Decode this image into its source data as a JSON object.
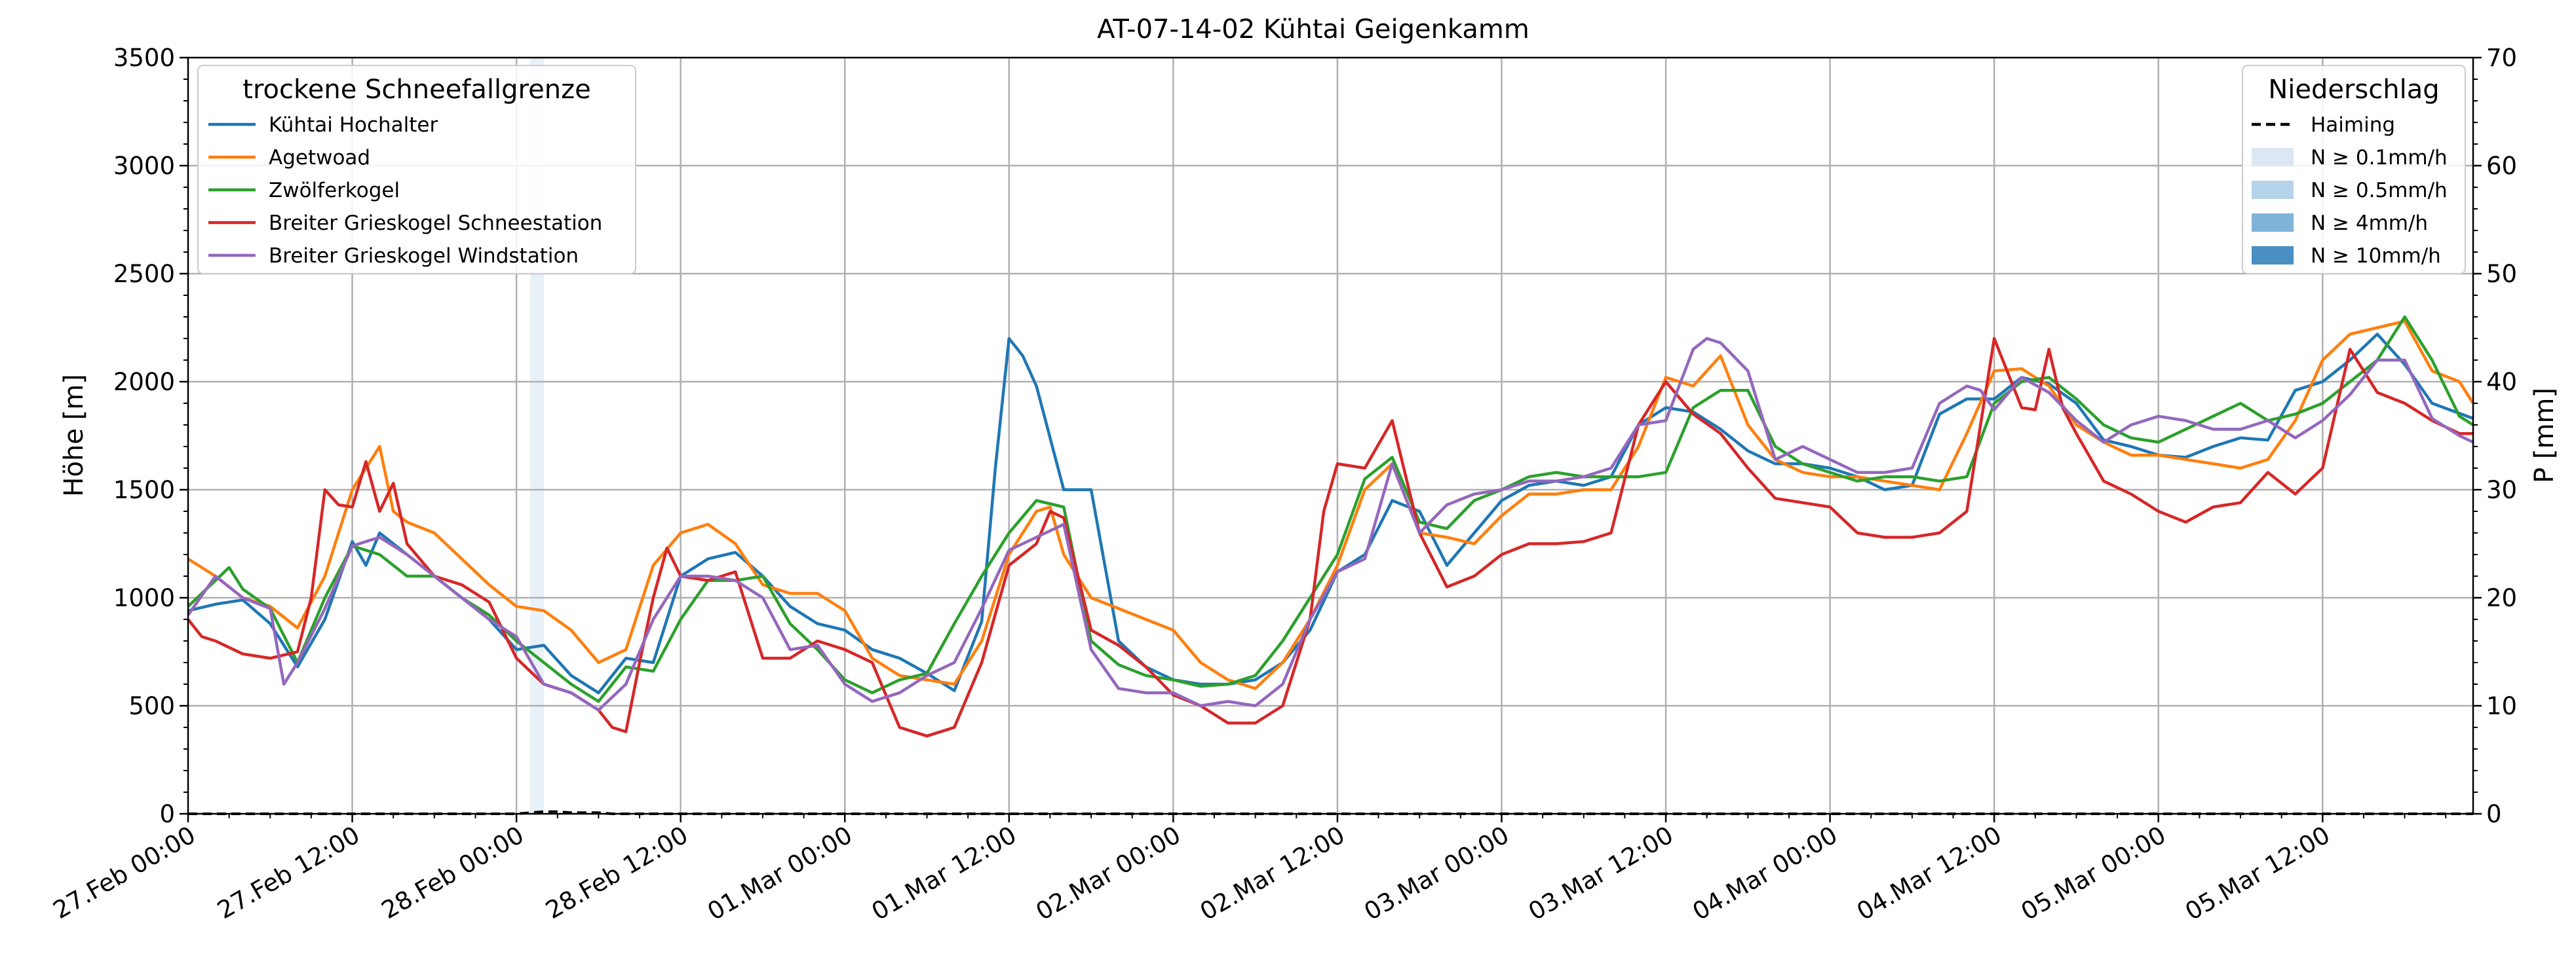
{
  "chart_data": {
    "type": "line",
    "title": "AT-07-14-02 Kühtai Geigenkamm",
    "ylabel_left": "Höhe [m]",
    "ylabel_right": "P [mm]",
    "ylim_left": [
      0,
      3500
    ],
    "ylim_right": [
      0,
      70
    ],
    "yticks_left": [
      0,
      500,
      1000,
      1500,
      2000,
      2500,
      3000,
      3500
    ],
    "yticks_right": [
      0,
      10,
      20,
      30,
      40,
      50,
      60,
      70
    ],
    "x_range_hours": [
      0,
      167
    ],
    "x_unit": "hours since 27 Feb 00:00",
    "xticks": [
      {
        "h": 0,
        "label": "27.Feb 00:00"
      },
      {
        "h": 12,
        "label": "27.Feb 12:00"
      },
      {
        "h": 24,
        "label": "28.Feb 00:00"
      },
      {
        "h": 36,
        "label": "28.Feb 12:00"
      },
      {
        "h": 48,
        "label": "01.Mar 00:00"
      },
      {
        "h": 60,
        "label": "01.Mar 12:00"
      },
      {
        "h": 72,
        "label": "02.Mar 00:00"
      },
      {
        "h": 84,
        "label": "02.Mar 12:00"
      },
      {
        "h": 96,
        "label": "03.Mar 00:00"
      },
      {
        "h": 108,
        "label": "03.Mar 12:00"
      },
      {
        "h": 120,
        "label": "04.Mar 00:00"
      },
      {
        "h": 132,
        "label": "04.Mar 12:00"
      },
      {
        "h": 144,
        "label": "05.Mar 00:00"
      },
      {
        "h": 156,
        "label": "05.Mar 12:00"
      }
    ],
    "grid": true,
    "legend_left": {
      "title": "trockene Schneefallgrenze",
      "placement": "upper-left"
    },
    "legend_right": {
      "title": "Niederschlag",
      "placement": "upper-right",
      "entries": [
        {
          "label": "Haiming",
          "kind": "dashed-line",
          "color": "#000000"
        },
        {
          "label": "N ≥ 0.1mm/h",
          "kind": "patch",
          "color": "#dbe8f4"
        },
        {
          "label": "N ≥ 0.5mm/h",
          "kind": "patch",
          "color": "#b5d3ea"
        },
        {
          "label": "N ≥ 4mm/h",
          "kind": "patch",
          "color": "#7fb3d8"
        },
        {
          "label": "N ≥ 10mm/h",
          "kind": "patch",
          "color": "#4a8fc4"
        }
      ]
    },
    "precip_bands": [
      {
        "h_start": 25,
        "h_end": 26,
        "level": "N ≥ 0.1mm/h"
      }
    ],
    "haiming_precip": {
      "x": [
        0,
        24,
        25,
        26,
        27,
        28,
        29,
        30,
        31,
        167
      ],
      "y": [
        0,
        0,
        0.1,
        0.2,
        0.2,
        0.1,
        0.1,
        0.1,
        0,
        0
      ]
    },
    "series": [
      {
        "name": "Kühtai Hochalter",
        "color": "#1f77b4",
        "x": [
          0,
          2,
          4,
          6,
          8,
          10,
          12,
          13,
          14,
          16,
          18,
          20,
          22,
          24,
          26,
          28,
          30,
          32,
          34,
          36,
          38,
          40,
          42,
          44,
          46,
          48,
          50,
          52,
          54,
          56,
          58,
          59,
          60,
          61,
          62,
          64,
          66,
          68,
          70,
          72,
          74,
          76,
          78,
          80,
          82,
          84,
          86,
          88,
          90,
          92,
          94,
          96,
          98,
          100,
          102,
          104,
          106,
          108,
          110,
          112,
          114,
          116,
          118,
          120,
          122,
          124,
          126,
          128,
          130,
          132,
          134,
          136,
          138,
          140,
          142,
          144,
          146,
          148,
          150,
          152,
          154,
          156,
          158,
          160,
          162,
          164,
          167
        ],
        "y": [
          940,
          970,
          990,
          880,
          680,
          900,
          1260,
          1150,
          1300,
          1200,
          1100,
          1000,
          900,
          760,
          780,
          640,
          560,
          720,
          700,
          1100,
          1180,
          1210,
          1100,
          960,
          880,
          850,
          760,
          720,
          650,
          570,
          890,
          1600,
          2200,
          2120,
          1980,
          1500,
          1500,
          800,
          680,
          620,
          600,
          600,
          620,
          700,
          850,
          1120,
          1200,
          1450,
          1400,
          1150,
          1300,
          1450,
          1520,
          1540,
          1520,
          1560,
          1800,
          1880,
          1860,
          1780,
          1680,
          1620,
          1620,
          1600,
          1560,
          1500,
          1520,
          1850,
          1920,
          1920,
          2020,
          1990,
          1900,
          1730,
          1700,
          1660,
          1650,
          1700,
          1740,
          1730,
          1960,
          2000,
          2100,
          2220,
          2080,
          1900,
          1830
        ]
      },
      {
        "name": "Agetwoad",
        "color": "#ff7f0e",
        "x": [
          0,
          2,
          4,
          6,
          8,
          10,
          12,
          13,
          14,
          15,
          16,
          18,
          20,
          22,
          24,
          26,
          28,
          30,
          32,
          34,
          36,
          38,
          40,
          42,
          44,
          46,
          48,
          50,
          52,
          54,
          56,
          58,
          60,
          62,
          63,
          64,
          66,
          68,
          70,
          72,
          74,
          76,
          78,
          80,
          82,
          84,
          86,
          88,
          90,
          92,
          94,
          96,
          98,
          100,
          102,
          104,
          106,
          108,
          110,
          112,
          114,
          116,
          118,
          120,
          122,
          124,
          126,
          128,
          130,
          132,
          134,
          136,
          138,
          140,
          142,
          144,
          146,
          148,
          150,
          152,
          154,
          156,
          158,
          160,
          162,
          164,
          166,
          167
        ],
        "y": [
          1180,
          1100,
          1000,
          960,
          860,
          1100,
          1500,
          1600,
          1700,
          1400,
          1350,
          1300,
          1180,
          1060,
          960,
          940,
          850,
          700,
          760,
          1150,
          1300,
          1340,
          1250,
          1060,
          1020,
          1020,
          940,
          720,
          640,
          620,
          600,
          800,
          1200,
          1400,
          1420,
          1200,
          1000,
          950,
          900,
          850,
          700,
          620,
          580,
          700,
          900,
          1150,
          1500,
          1620,
          1300,
          1280,
          1250,
          1380,
          1480,
          1480,
          1500,
          1500,
          1700,
          2020,
          1980,
          2120,
          1800,
          1640,
          1580,
          1560,
          1560,
          1540,
          1520,
          1500,
          1760,
          2050,
          2060,
          1980,
          1800,
          1720,
          1660,
          1660,
          1640,
          1620,
          1600,
          1640,
          1820,
          2100,
          2220,
          2250,
          2280,
          2050,
          2000,
          1900
        ]
      },
      {
        "name": "Zwölferkogel",
        "color": "#2ca02c",
        "x": [
          0,
          2,
          3,
          4,
          6,
          8,
          10,
          12,
          14,
          16,
          18,
          20,
          22,
          24,
          26,
          28,
          30,
          32,
          34,
          36,
          38,
          40,
          42,
          44,
          46,
          48,
          50,
          52,
          54,
          56,
          58,
          60,
          62,
          64,
          66,
          68,
          70,
          72,
          74,
          76,
          78,
          80,
          82,
          84,
          86,
          88,
          90,
          92,
          94,
          96,
          98,
          100,
          102,
          104,
          106,
          108,
          110,
          112,
          114,
          116,
          118,
          120,
          122,
          124,
          126,
          128,
          130,
          132,
          134,
          136,
          138,
          140,
          142,
          144,
          146,
          148,
          150,
          152,
          154,
          156,
          158,
          160,
          162,
          164,
          166,
          167
        ],
        "y": [
          960,
          1080,
          1140,
          1040,
          950,
          700,
          1000,
          1240,
          1200,
          1100,
          1100,
          1000,
          920,
          800,
          700,
          600,
          520,
          680,
          660,
          900,
          1080,
          1080,
          1100,
          880,
          760,
          620,
          560,
          620,
          650,
          880,
          1100,
          1300,
          1450,
          1420,
          800,
          690,
          640,
          620,
          590,
          600,
          640,
          800,
          1000,
          1200,
          1550,
          1650,
          1350,
          1320,
          1450,
          1500,
          1560,
          1580,
          1560,
          1560,
          1560,
          1580,
          1880,
          1960,
          1960,
          1700,
          1620,
          1580,
          1540,
          1560,
          1560,
          1540,
          1560,
          1900,
          2000,
          2020,
          1920,
          1800,
          1740,
          1720,
          1780,
          1840,
          1900,
          1820,
          1850,
          1900,
          2000,
          2100,
          2300,
          2100,
          1840,
          1800
        ]
      },
      {
        "name": "Breiter Grieskogel Schneestation",
        "color": "#d62728",
        "x": [
          0,
          1,
          2,
          4,
          6,
          8,
          9,
          10,
          11,
          12,
          13,
          14,
          15,
          16,
          18,
          20,
          22,
          24,
          26,
          28,
          30,
          31,
          32,
          33,
          34,
          35,
          36,
          38,
          40,
          42,
          44,
          46,
          48,
          50,
          52,
          54,
          56,
          58,
          60,
          62,
          63,
          64,
          66,
          68,
          70,
          72,
          74,
          76,
          78,
          80,
          82,
          83,
          84,
          86,
          88,
          90,
          92,
          94,
          96,
          98,
          100,
          102,
          104,
          106,
          108,
          110,
          112,
          114,
          116,
          118,
          120,
          122,
          124,
          126,
          128,
          130,
          132,
          134,
          135,
          136,
          137,
          138,
          140,
          142,
          144,
          146,
          148,
          150,
          152,
          154,
          156,
          158,
          160,
          162,
          164,
          166,
          167
        ],
        "y": [
          900,
          820,
          800,
          740,
          720,
          750,
          1000,
          1500,
          1430,
          1420,
          1630,
          1400,
          1530,
          1250,
          1100,
          1060,
          980,
          720,
          600,
          560,
          480,
          400,
          380,
          700,
          1000,
          1230,
          1100,
          1080,
          1120,
          720,
          720,
          800,
          760,
          700,
          400,
          360,
          400,
          700,
          1150,
          1250,
          1400,
          1370,
          850,
          780,
          680,
          550,
          500,
          420,
          420,
          500,
          900,
          1400,
          1620,
          1600,
          1820,
          1300,
          1050,
          1100,
          1200,
          1250,
          1250,
          1260,
          1300,
          1800,
          2000,
          1850,
          1760,
          1600,
          1460,
          1440,
          1420,
          1300,
          1280,
          1280,
          1300,
          1400,
          2200,
          1880,
          1870,
          2150,
          1880,
          1760,
          1540,
          1480,
          1400,
          1350,
          1420,
          1440,
          1580,
          1480,
          1600,
          2150,
          1950,
          1900,
          1820,
          1760,
          1760
        ]
      },
      {
        "name": "Breiter Grieskogel Windstation",
        "color": "#9467bd",
        "x": [
          0,
          2,
          4,
          6,
          7,
          8,
          10,
          12,
          14,
          16,
          18,
          20,
          22,
          24,
          26,
          28,
          30,
          32,
          34,
          36,
          38,
          40,
          42,
          44,
          46,
          48,
          50,
          52,
          54,
          56,
          58,
          60,
          62,
          64,
          66,
          68,
          70,
          72,
          74,
          76,
          78,
          80,
          82,
          84,
          86,
          88,
          90,
          92,
          94,
          96,
          98,
          100,
          102,
          104,
          106,
          108,
          110,
          111,
          112,
          114,
          116,
          118,
          120,
          122,
          124,
          126,
          128,
          130,
          131,
          132,
          134,
          136,
          138,
          140,
          142,
          144,
          146,
          148,
          150,
          152,
          154,
          156,
          158,
          160,
          162,
          164,
          166,
          167
        ],
        "y": [
          920,
          1100,
          1000,
          950,
          600,
          700,
          950,
          1240,
          1280,
          1200,
          1100,
          1000,
          900,
          820,
          600,
          560,
          480,
          600,
          900,
          1100,
          1100,
          1080,
          1000,
          760,
          780,
          600,
          520,
          560,
          640,
          700,
          950,
          1220,
          1280,
          1340,
          760,
          580,
          560,
          560,
          500,
          520,
          500,
          600,
          900,
          1120,
          1180,
          1620,
          1300,
          1430,
          1480,
          1500,
          1540,
          1540,
          1560,
          1600,
          1800,
          1820,
          2150,
          2200,
          2180,
          2050,
          1640,
          1700,
          1640,
          1580,
          1580,
          1600,
          1900,
          1980,
          1960,
          1870,
          2020,
          1950,
          1820,
          1720,
          1800,
          1840,
          1820,
          1780,
          1780,
          1820,
          1740,
          1820,
          1940,
          2100,
          2100,
          1830,
          1750,
          1720
        ]
      }
    ]
  }
}
